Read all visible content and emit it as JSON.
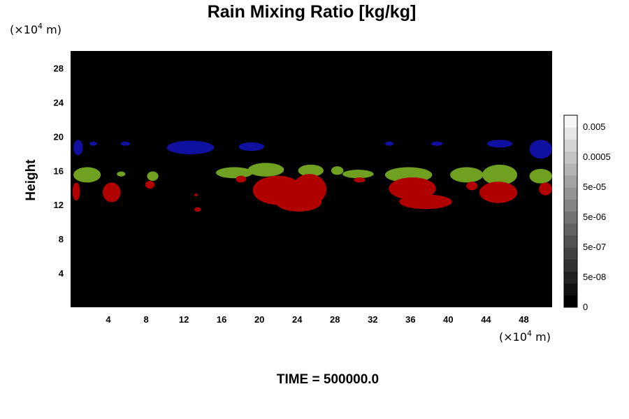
{
  "chart_data": {
    "type": "heatmap",
    "title": "Rain Mixing Ratio [kg/kg]",
    "ylabel": "Height",
    "xlabel": "",
    "x_unit_prefix": "(×10",
    "x_unit_exp": "4",
    "x_unit_suffix": " m)",
    "y_unit_prefix": "(×10",
    "y_unit_exp": "4",
    "y_unit_suffix": " m)",
    "footer": "TIME = 500000.0",
    "xlim": [
      0,
      51
    ],
    "ylim": [
      0,
      30
    ],
    "x_ticks": [
      4,
      8,
      12,
      16,
      20,
      24,
      28,
      32,
      36,
      40,
      44,
      48
    ],
    "y_ticks": [
      4,
      8,
      12,
      16,
      20,
      24,
      28
    ],
    "background_color": "#000000",
    "colorbar_ticks": [
      "0",
      "5e-08",
      "5e-07",
      "5e-06",
      "5e-05",
      "0.0005",
      "0.005"
    ],
    "colorbar_levels": 16,
    "regions": [
      {
        "color": "#1010a0",
        "x": [
          0.3,
          1.3
        ],
        "y": [
          17.8,
          19.6
        ]
      },
      {
        "color": "#1010a0",
        "x": [
          2.0,
          2.8
        ],
        "y": [
          18.9,
          19.4
        ]
      },
      {
        "color": "#1010a0",
        "x": [
          5.3,
          6.3
        ],
        "y": [
          18.9,
          19.4
        ]
      },
      {
        "color": "#1010a0",
        "x": [
          10.2,
          15.2
        ],
        "y": [
          17.9,
          19.5
        ]
      },
      {
        "color": "#1010a0",
        "x": [
          17.8,
          20.5
        ],
        "y": [
          18.3,
          19.3
        ]
      },
      {
        "color": "#1010a0",
        "x": [
          33.3,
          34.2
        ],
        "y": [
          18.9,
          19.4
        ]
      },
      {
        "color": "#1010a0",
        "x": [
          38.2,
          39.4
        ],
        "y": [
          18.9,
          19.4
        ]
      },
      {
        "color": "#1010a0",
        "x": [
          44.1,
          46.8
        ],
        "y": [
          18.7,
          19.6
        ]
      },
      {
        "color": "#1010a0",
        "x": [
          48.6,
          51.0
        ],
        "y": [
          17.4,
          19.6
        ]
      },
      {
        "color": "#70a020",
        "x": [
          0.3,
          3.2
        ],
        "y": [
          14.6,
          16.4
        ]
      },
      {
        "color": "#70a020",
        "x": [
          4.9,
          5.8
        ],
        "y": [
          15.3,
          15.9
        ]
      },
      {
        "color": "#70a020",
        "x": [
          8.1,
          9.3
        ],
        "y": [
          14.8,
          15.9
        ]
      },
      {
        "color": "#70a020",
        "x": [
          15.4,
          19.3
        ],
        "y": [
          15.1,
          16.4
        ]
      },
      {
        "color": "#70a020",
        "x": [
          18.8,
          22.6
        ],
        "y": [
          15.3,
          16.9
        ]
      },
      {
        "color": "#70a020",
        "x": [
          24.1,
          26.8
        ],
        "y": [
          15.3,
          16.7
        ]
      },
      {
        "color": "#70a020",
        "x": [
          27.6,
          28.9
        ],
        "y": [
          15.5,
          16.5
        ]
      },
      {
        "color": "#70a020",
        "x": [
          28.8,
          32.1
        ],
        "y": [
          15.1,
          16.1
        ]
      },
      {
        "color": "#70a020",
        "x": [
          33.3,
          38.3
        ],
        "y": [
          14.6,
          16.4
        ]
      },
      {
        "color": "#70a020",
        "x": [
          40.2,
          43.7
        ],
        "y": [
          14.6,
          16.4
        ]
      },
      {
        "color": "#70a020",
        "x": [
          43.6,
          47.3
        ],
        "y": [
          14.3,
          16.7
        ]
      },
      {
        "color": "#70a020",
        "x": [
          48.6,
          51.0
        ],
        "y": [
          14.5,
          16.2
        ]
      },
      {
        "color": "#b00000",
        "x": [
          0.2,
          1.0
        ],
        "y": [
          12.5,
          14.6
        ]
      },
      {
        "color": "#b00000",
        "x": [
          3.4,
          5.3
        ],
        "y": [
          12.3,
          14.6
        ]
      },
      {
        "color": "#b00000",
        "x": [
          7.9,
          8.9
        ],
        "y": [
          13.9,
          14.8
        ]
      },
      {
        "color": "#b00000",
        "x": [
          13.1,
          13.5
        ],
        "y": [
          13.0,
          13.3
        ]
      },
      {
        "color": "#b00000",
        "x": [
          13.1,
          13.8
        ],
        "y": [
          11.2,
          11.7
        ]
      },
      {
        "color": "#b00000",
        "x": [
          17.5,
          18.6
        ],
        "y": [
          14.6,
          15.4
        ]
      },
      {
        "color": "#b00000",
        "x": [
          19.3,
          24.6
        ],
        "y": [
          12.0,
          15.4
        ]
      },
      {
        "color": "#b00000",
        "x": [
          21.7,
          26.6
        ],
        "y": [
          11.2,
          13.5
        ]
      },
      {
        "color": "#b00000",
        "x": [
          23.5,
          27.1
        ],
        "y": [
          12.0,
          15.6
        ]
      },
      {
        "color": "#b00000",
        "x": [
          30.0,
          31.2
        ],
        "y": [
          14.6,
          15.2
        ]
      },
      {
        "color": "#b00000",
        "x": [
          33.7,
          38.7
        ],
        "y": [
          12.6,
          15.2
        ]
      },
      {
        "color": "#b00000",
        "x": [
          34.8,
          40.4
        ],
        "y": [
          11.5,
          13.2
        ]
      },
      {
        "color": "#b00000",
        "x": [
          41.9,
          43.1
        ],
        "y": [
          13.7,
          14.7
        ]
      },
      {
        "color": "#b00000",
        "x": [
          43.3,
          47.3
        ],
        "y": [
          12.2,
          14.7
        ]
      },
      {
        "color": "#b00000",
        "x": [
          49.6,
          51.0
        ],
        "y": [
          13.1,
          14.6
        ]
      }
    ]
  }
}
